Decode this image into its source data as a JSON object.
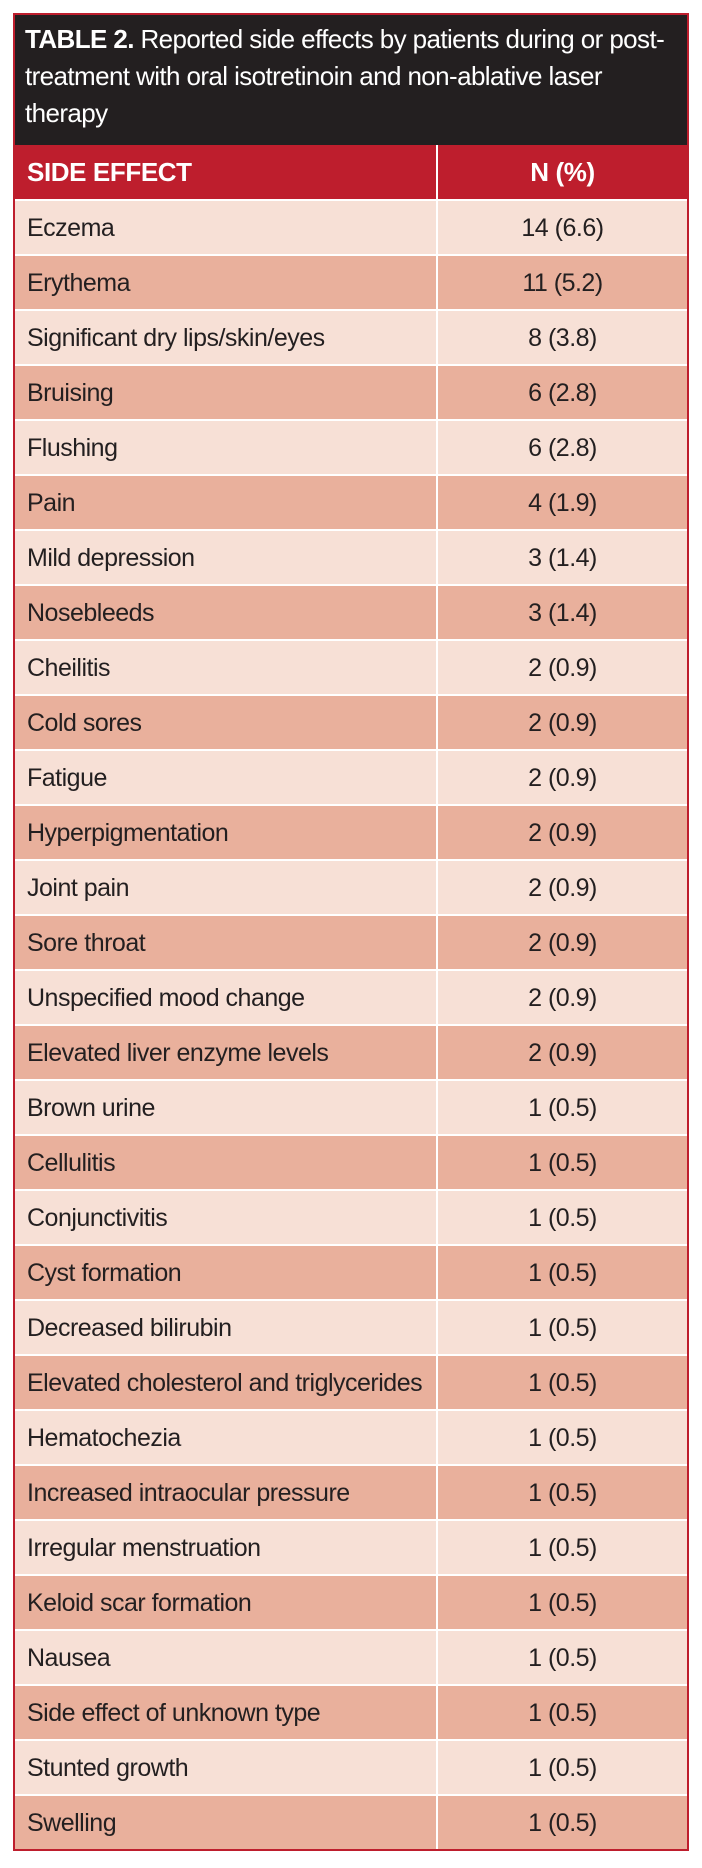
{
  "table": {
    "title_label": "TABLE 2.",
    "title": "Reported side effects by patients during or post-treatment with oral isotretinoin and non-ablative laser therapy",
    "header": [
      "SIDE EFFECT",
      "N (%)"
    ],
    "rows": [
      [
        "Eczema",
        "14 (6.6)"
      ],
      [
        "Erythema",
        "11 (5.2)"
      ],
      [
        "Significant dry lips/skin/eyes",
        "8 (3.8)"
      ],
      [
        "Bruising",
        "6 (2.8)"
      ],
      [
        "Flushing",
        "6 (2.8)"
      ],
      [
        "Pain",
        "4 (1.9)"
      ],
      [
        "Mild depression",
        "3 (1.4)"
      ],
      [
        "Nosebleeds",
        "3 (1.4)"
      ],
      [
        "Cheilitis",
        "2 (0.9)"
      ],
      [
        "Cold sores",
        "2 (0.9)"
      ],
      [
        "Fatigue",
        "2 (0.9)"
      ],
      [
        "Hyperpigmentation",
        "2 (0.9)"
      ],
      [
        "Joint pain",
        "2 (0.9)"
      ],
      [
        "Sore throat",
        "2 (0.9)"
      ],
      [
        "Unspecified mood change",
        "2 (0.9)"
      ],
      [
        "Elevated liver enzyme levels",
        "2 (0.9)"
      ],
      [
        "Brown urine",
        "1 (0.5)"
      ],
      [
        "Cellulitis",
        "1 (0.5)"
      ],
      [
        "Conjunctivitis",
        "1 (0.5)"
      ],
      [
        "Cyst formation",
        "1 (0.5)"
      ],
      [
        "Decreased bilirubin",
        "1 (0.5)"
      ],
      [
        "Elevated cholesterol and triglycerides",
        "1 (0.5)"
      ],
      [
        "Hematochezia",
        "1 (0.5)"
      ],
      [
        "Increased intraocular pressure",
        "1 (0.5)"
      ],
      [
        "Irregular menstruation",
        "1 (0.5)"
      ],
      [
        "Keloid scar formation",
        "1 (0.5)"
      ],
      [
        "Nausea",
        "1 (0.5)"
      ],
      [
        "Side effect of unknown type",
        "1 (0.5)"
      ],
      [
        "Stunted growth",
        "1 (0.5)"
      ],
      [
        "Swelling",
        "1 (0.5)"
      ]
    ]
  }
}
